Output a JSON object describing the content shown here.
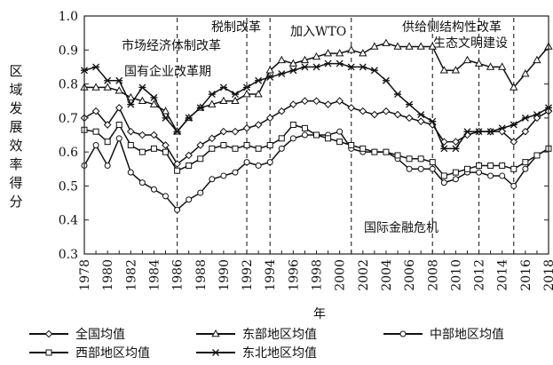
{
  "chart_data": {
    "type": "line",
    "title": "",
    "xlabel": "年",
    "ylabel": "区域发展效率得分",
    "ylim": [
      0.3,
      1.0
    ],
    "xlim": [
      1978,
      2018
    ],
    "yticks": [
      "0.3",
      "0.4",
      "0.5",
      "0.6",
      "0.7",
      "0.8",
      "0.9",
      "1.0"
    ],
    "xticks": [
      "1978",
      "1980",
      "1982",
      "1984",
      "1986",
      "1988",
      "1990",
      "1992",
      "1994",
      "1996",
      "1998",
      "2000",
      "2002",
      "2004",
      "2006",
      "2008",
      "2010",
      "2012",
      "2014",
      "2016",
      "2018"
    ],
    "x": [
      1978,
      1979,
      1980,
      1981,
      1982,
      1983,
      1984,
      1985,
      1986,
      1987,
      1988,
      1989,
      1990,
      1991,
      1992,
      1993,
      1994,
      1995,
      1996,
      1997,
      1998,
      1999,
      2000,
      2001,
      2002,
      2003,
      2004,
      2005,
      2006,
      2007,
      2008,
      2009,
      2010,
      2011,
      2012,
      2013,
      2014,
      2015,
      2016,
      2017,
      2018
    ],
    "series": [
      {
        "name": "全国均值",
        "marker": "diamond",
        "values": [
          0.7,
          0.72,
          0.68,
          0.73,
          0.66,
          0.65,
          0.65,
          0.62,
          0.565,
          0.59,
          0.62,
          0.64,
          0.66,
          0.66,
          0.67,
          0.68,
          0.7,
          0.72,
          0.74,
          0.75,
          0.75,
          0.74,
          0.75,
          0.73,
          0.72,
          0.71,
          0.72,
          0.71,
          0.7,
          0.69,
          0.68,
          0.63,
          0.63,
          0.65,
          0.66,
          0.66,
          0.66,
          0.63,
          0.66,
          0.7,
          0.72
        ]
      },
      {
        "name": "东部地区均值",
        "marker": "triangle",
        "values": [
          0.79,
          0.79,
          0.79,
          0.78,
          0.76,
          0.75,
          0.74,
          0.72,
          0.66,
          0.7,
          0.73,
          0.74,
          0.75,
          0.75,
          0.77,
          0.77,
          0.84,
          0.87,
          0.86,
          0.87,
          0.88,
          0.89,
          0.89,
          0.9,
          0.89,
          0.91,
          0.92,
          0.91,
          0.91,
          0.91,
          0.91,
          0.84,
          0.84,
          0.87,
          0.86,
          0.85,
          0.85,
          0.79,
          0.83,
          0.87,
          0.91
        ]
      },
      {
        "name": "中部地区均值",
        "marker": "circle",
        "values": [
          0.56,
          0.62,
          0.56,
          0.64,
          0.54,
          0.51,
          0.49,
          0.47,
          0.43,
          0.46,
          0.48,
          0.52,
          0.53,
          0.54,
          0.57,
          0.56,
          0.57,
          0.61,
          0.64,
          0.65,
          0.65,
          0.65,
          0.66,
          0.61,
          0.6,
          0.6,
          0.6,
          0.58,
          0.55,
          0.55,
          0.55,
          0.51,
          0.52,
          0.54,
          0.54,
          0.53,
          0.53,
          0.5,
          0.55,
          0.59,
          0.61
        ]
      },
      {
        "name": "西部地区均值",
        "marker": "square",
        "values": [
          0.665,
          0.66,
          0.63,
          0.68,
          0.62,
          0.6,
          0.61,
          0.6,
          0.545,
          0.56,
          0.58,
          0.61,
          0.62,
          0.61,
          0.62,
          0.61,
          0.62,
          0.64,
          0.68,
          0.67,
          0.65,
          0.64,
          0.63,
          0.62,
          0.61,
          0.6,
          0.6,
          0.59,
          0.58,
          0.58,
          0.57,
          0.53,
          0.54,
          0.55,
          0.56,
          0.56,
          0.56,
          0.55,
          0.57,
          0.59,
          0.61
        ]
      },
      {
        "name": "东北地区均值",
        "marker": "star",
        "values": [
          0.84,
          0.85,
          0.81,
          0.81,
          0.74,
          0.79,
          0.76,
          0.7,
          0.66,
          0.7,
          0.73,
          0.77,
          0.79,
          0.77,
          0.79,
          0.81,
          0.82,
          0.83,
          0.84,
          0.85,
          0.85,
          0.86,
          0.86,
          0.85,
          0.85,
          0.84,
          0.81,
          0.77,
          0.74,
          0.71,
          0.69,
          0.61,
          0.61,
          0.66,
          0.66,
          0.66,
          0.67,
          0.68,
          0.7,
          0.71,
          0.73
        ]
      }
    ],
    "events": [
      {
        "label": "国有企业改革期",
        "year": 1986
      },
      {
        "label": "市场经济体制改革",
        "year": 1992
      },
      {
        "label": "税制改革",
        "year": 1994
      },
      {
        "label": "加入WTO",
        "year": 2001
      },
      {
        "label": "国际金融危机",
        "year": 2008
      },
      {
        "label": "供给侧结构性改革",
        "year": 2012
      },
      {
        "label": "生态文明建设",
        "year": 2015
      }
    ],
    "grid": false,
    "legend_position": "bottom"
  }
}
